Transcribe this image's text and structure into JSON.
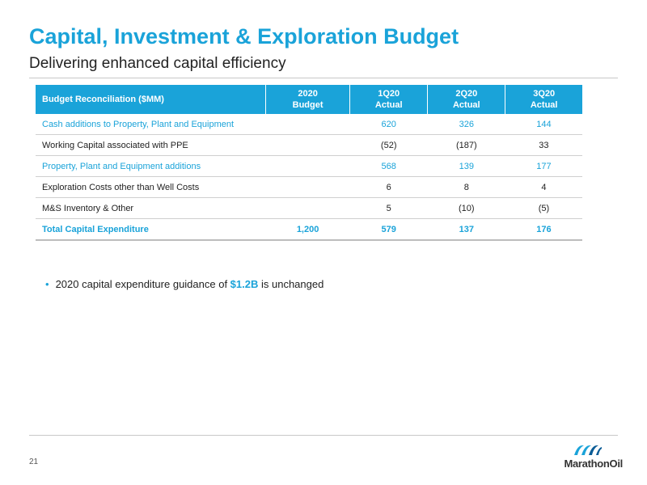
{
  "slide": {
    "title": "Capital, Investment & Exploration Budget",
    "subtitle": "Delivering enhanced capital efficiency",
    "page_number": "21"
  },
  "table": {
    "headers": [
      {
        "line1": "Budget Reconciliation ($MM)",
        "line2": ""
      },
      {
        "line1": "2020",
        "line2": "Budget"
      },
      {
        "line1": "1Q20",
        "line2": "Actual"
      },
      {
        "line1": "2Q20",
        "line2": "Actual"
      },
      {
        "line1": "3Q20",
        "line2": "Actual"
      }
    ],
    "rows": [
      {
        "label": "Cash additions to Property, Plant and Equipment",
        "budget": "",
        "q1": "620",
        "q2": "326",
        "q3": "144"
      },
      {
        "label": "Working Capital associated with PPE",
        "budget": "",
        "q1": "(52)",
        "q2": "(187)",
        "q3": "33"
      },
      {
        "label": "Property, Plant and Equipment additions",
        "budget": "",
        "q1": "568",
        "q2": "139",
        "q3": "177"
      },
      {
        "label": "Exploration Costs other than Well Costs",
        "budget": "",
        "q1": "6",
        "q2": "8",
        "q3": "4"
      },
      {
        "label": "M&S Inventory & Other",
        "budget": "",
        "q1": "5",
        "q2": "(10)",
        "q3": "(5)"
      },
      {
        "label": "Total Capital Expenditure",
        "budget": "1,200",
        "q1": "579",
        "q2": "137",
        "q3": "176"
      }
    ]
  },
  "bullet": {
    "prefix": "2020 capital expenditure guidance of ",
    "highlight": "$1.2B",
    "suffix": " is unchanged"
  },
  "logo": {
    "brand": "MarathonOil",
    "icon": "marathon-oil-wave-icon",
    "colors": [
      "#1aa3d9",
      "#0a5c96"
    ]
  },
  "colors": {
    "accent": "#1aa3d9"
  }
}
